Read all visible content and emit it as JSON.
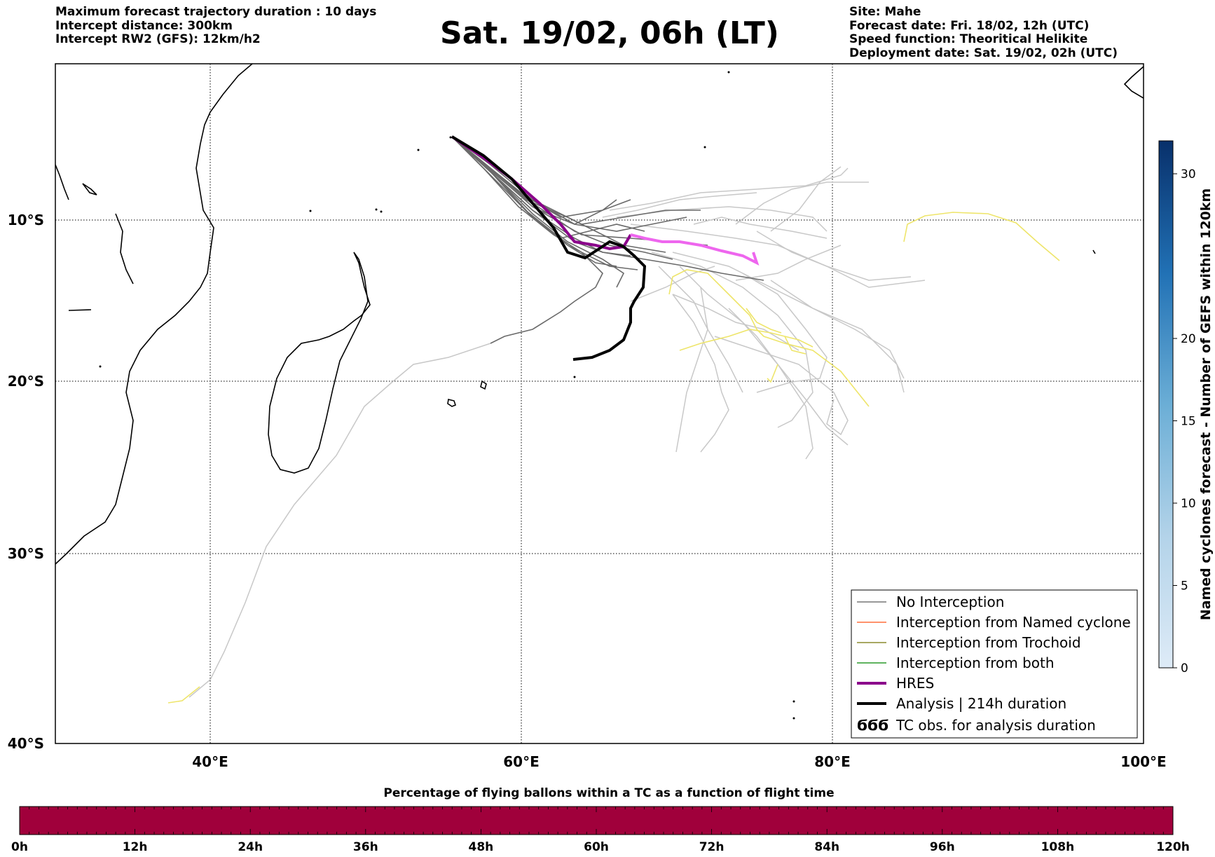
{
  "header": {
    "left_lines": [
      "Maximum forecast trajectory duration : 10 days",
      "Intercept distance: 300km",
      "Intercept RW2 (GFS):  12km/h2"
    ],
    "title": "Sat. 19/02, 06h (LT)",
    "right_lines": [
      "Site: Mahe",
      "Forecast date: Fri. 18/02, 12h (UTC)",
      "Speed function: Theoritical Helikite",
      "Deployment date: Sat. 19/02, 02h (UTC)"
    ]
  },
  "map": {
    "lon_range": [
      30,
      100
    ],
    "lat_labels": [
      "10°S",
      "20°S",
      "30°S",
      "40°S"
    ],
    "lon_labels": [
      "40°E",
      "60°E",
      "80°E",
      "100°E"
    ],
    "grid": "dotted"
  },
  "legend": {
    "placement": "bottom-right",
    "items": [
      {
        "label": "No Interception",
        "color": "#777777"
      },
      {
        "label": "Interception from Named cyclone",
        "color": "#ff6f3c"
      },
      {
        "label": "Interception from Trochoid",
        "color": "#8b8b2e"
      },
      {
        "label": "Interception from both",
        "color": "#2a9a2a"
      },
      {
        "label": "HRES",
        "color": "#8b008b"
      },
      {
        "label": "Analysis | 214h duration",
        "color": "#000000"
      },
      {
        "label": "TC obs. for analysis duration",
        "color": "#000000",
        "symbol": "ϬϬϬ"
      }
    ]
  },
  "colorbar_right": {
    "title": "Named cyclones forecast - Number of GEFS within 120km",
    "ticks": [
      "0",
      "5",
      "10",
      "15",
      "20",
      "30"
    ],
    "tick_values": [
      0,
      5,
      10,
      15,
      20,
      30
    ],
    "max": 32,
    "color_low": "#deebf7",
    "color_high": "#08306b"
  },
  "colorbar_bottom": {
    "title": "Percentage of flying ballons within a TC as a function of flight time",
    "ticks": [
      "0h",
      "12h",
      "24h",
      "36h",
      "48h",
      "60h",
      "72h",
      "84h",
      "96h",
      "108h",
      "120h"
    ],
    "fill_color": "#a0003b"
  },
  "colors": {
    "grey_light": "#c8c8c8",
    "grey_dark": "#6a6a6a",
    "yellow": "#eee56a",
    "hres": "#8b008b",
    "hres_late": "#ee66ee",
    "analysis": "#000000"
  }
}
